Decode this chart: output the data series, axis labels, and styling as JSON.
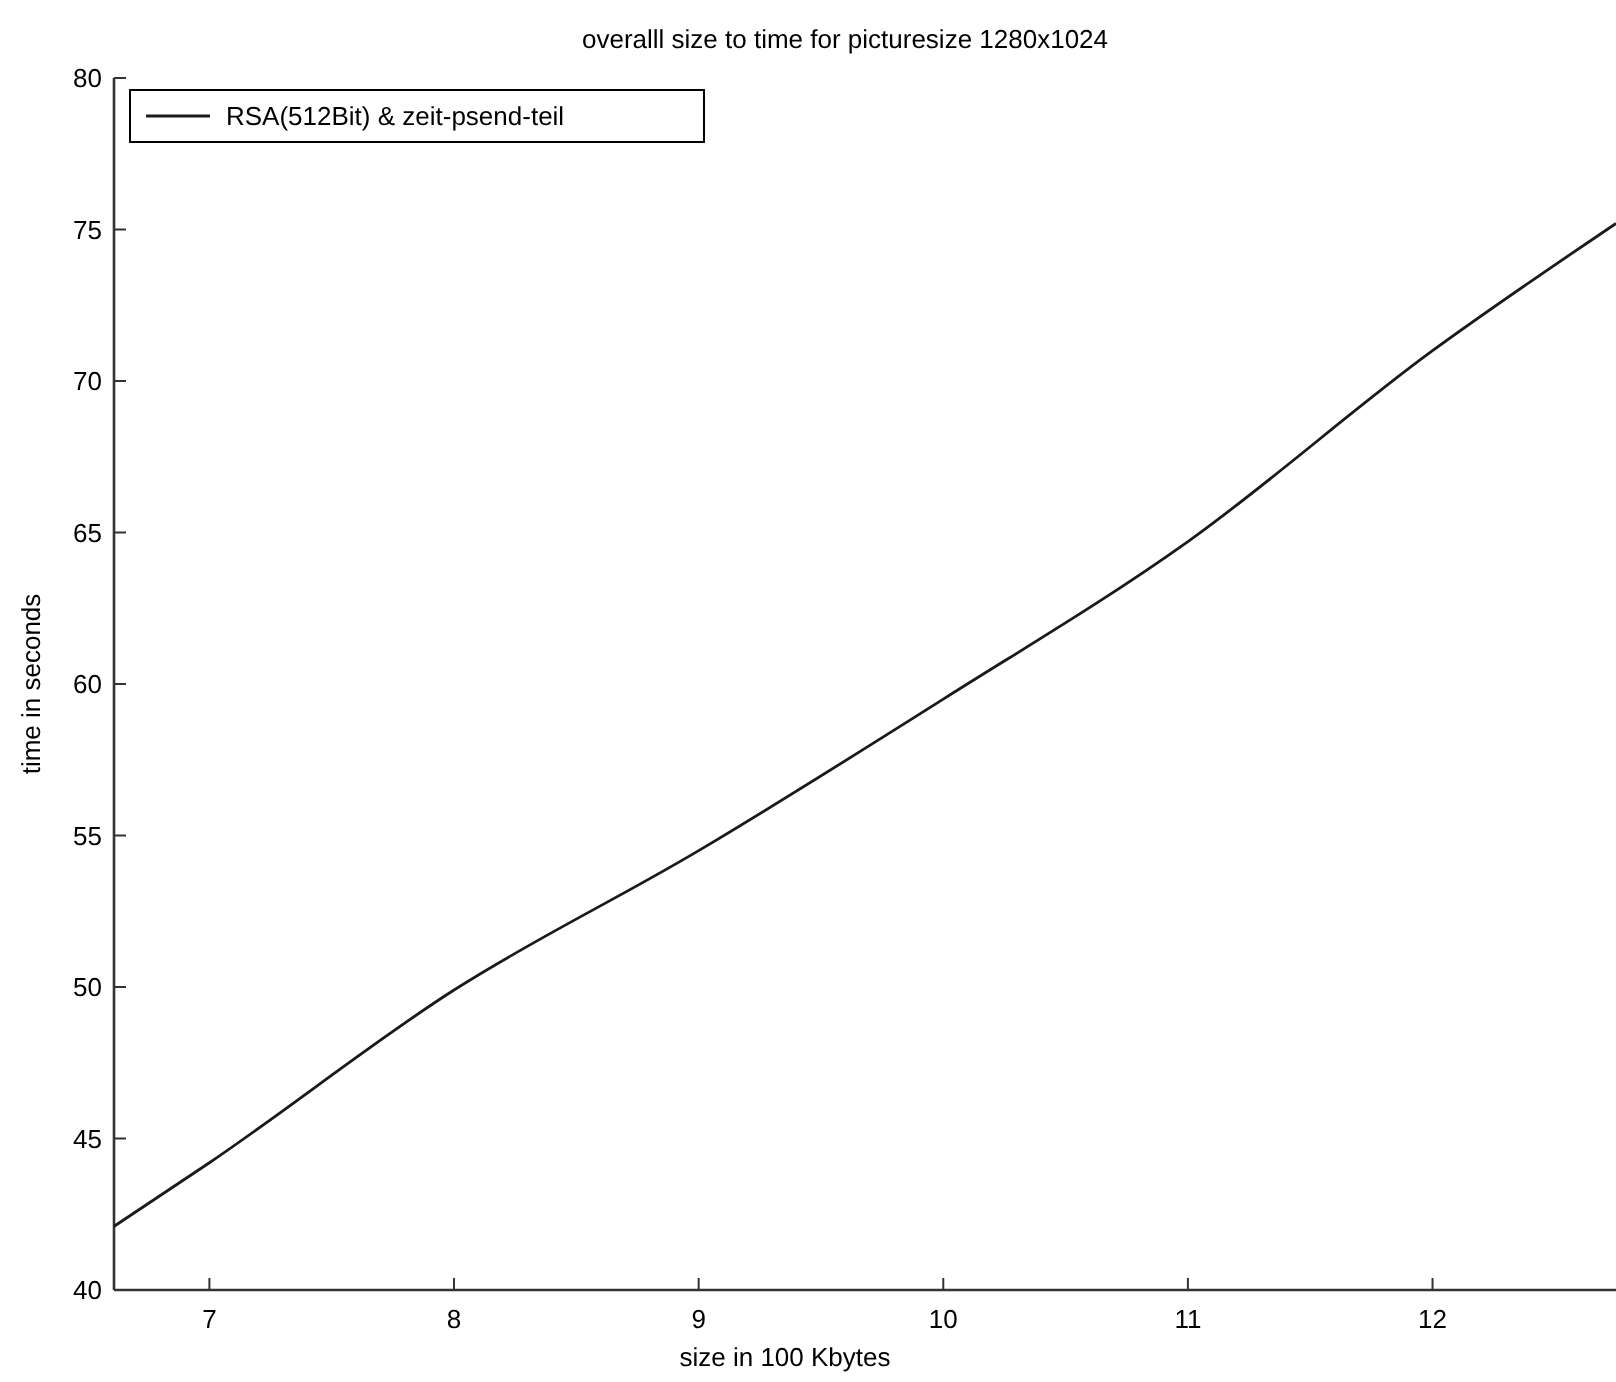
{
  "chart_data": {
    "type": "line",
    "title": "overalll size to time for picturesize 1280x1024",
    "xlabel": "size in 100 Kbytes",
    "ylabel": "time in seconds",
    "x": [
      6.61,
      7,
      8,
      9,
      10,
      11,
      12,
      12.75
    ],
    "series": [
      {
        "name": "RSA(512Bit) & zeit-psend-teil",
        "color": "#1a1a1a",
        "values": [
          42.1,
          44.2,
          49.9,
          54.5,
          59.5,
          64.7,
          71.0,
          75.2
        ]
      }
    ],
    "xlim": [
      6.61,
      12.75
    ],
    "xticks": [
      7,
      8,
      9,
      10,
      11,
      12
    ],
    "ylim": [
      40,
      80
    ],
    "yticks": [
      40,
      45,
      50,
      55,
      60,
      65,
      70,
      75,
      80
    ],
    "legend": "top left",
    "grid": false
  }
}
